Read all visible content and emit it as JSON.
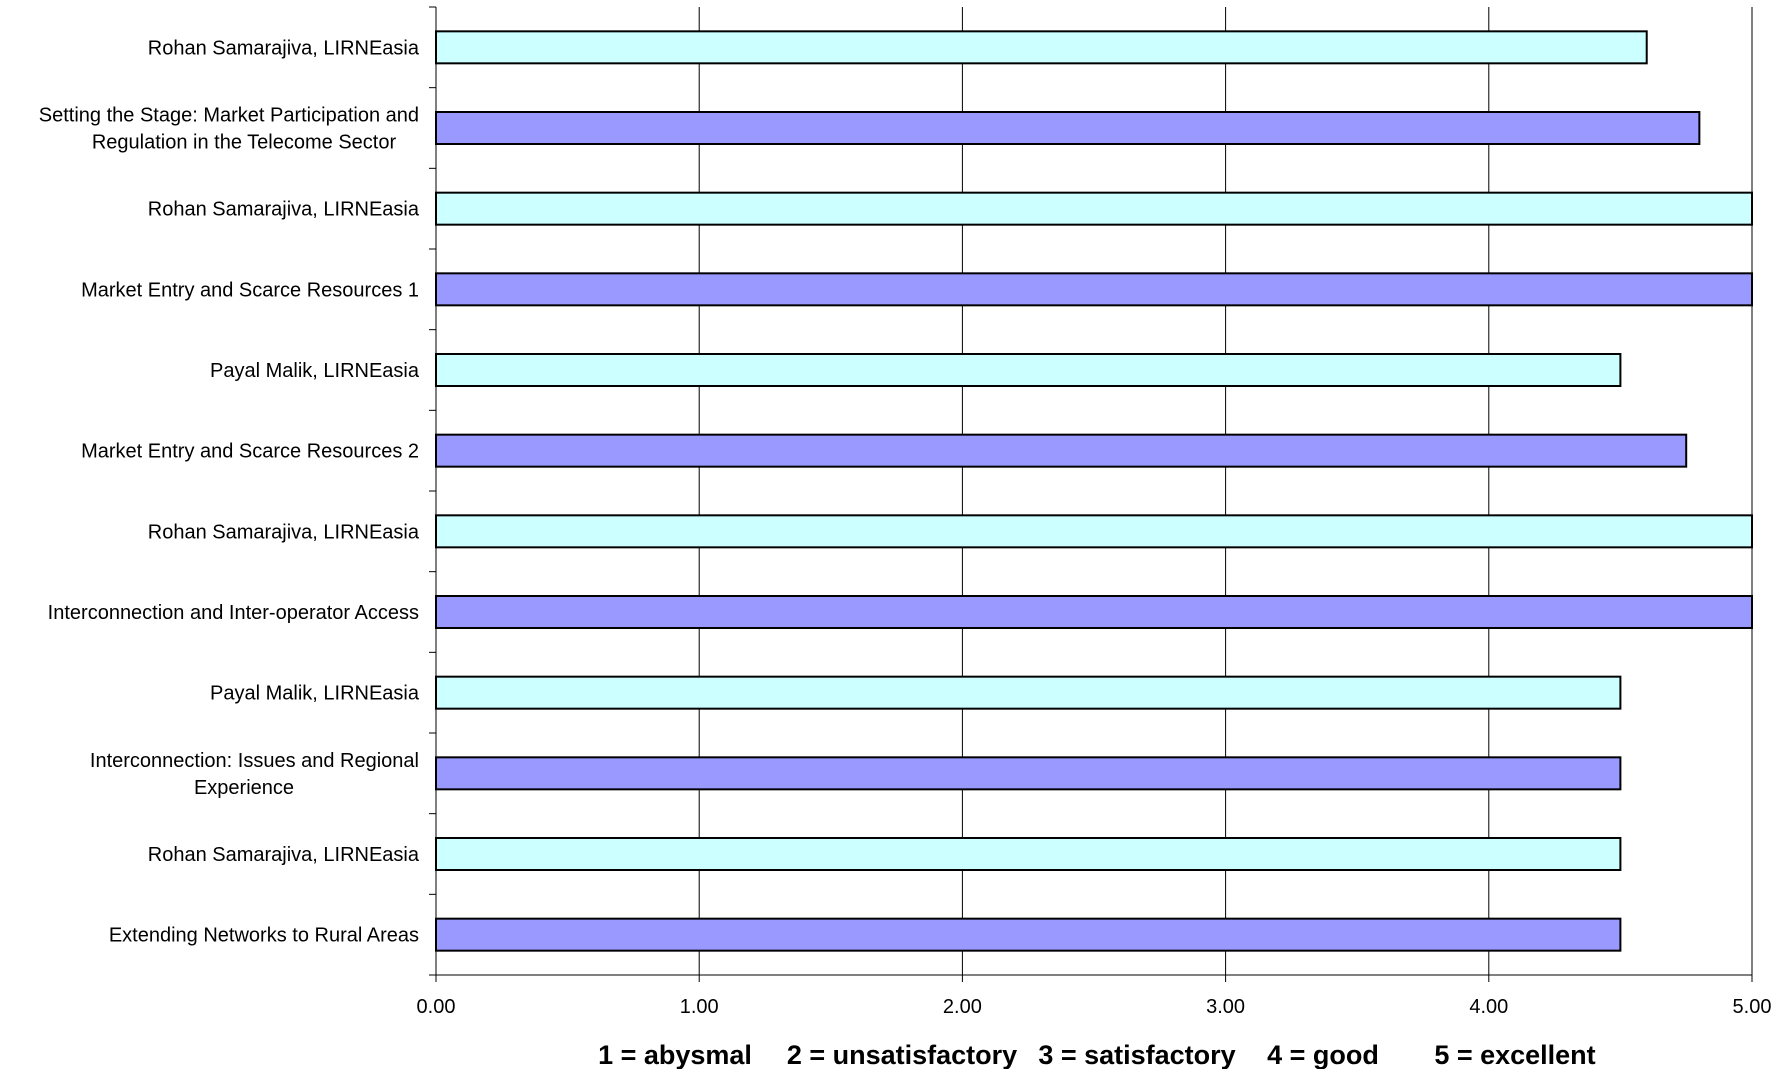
{
  "chart_data": {
    "type": "bar",
    "orientation": "horizontal",
    "categories": [
      "Rohan Samarajiva, LIRNEasia",
      "Setting the Stage: Market Participation and Regulation in the Telecome Sector",
      "Rohan Samarajiva, LIRNEasia",
      "Market Entry and Scarce Resources 1",
      "Payal Malik, LIRNEasia",
      "Market Entry and Scarce Resources 2",
      "Rohan Samarajiva, LIRNEasia",
      "Interconnection and Inter-operator Access",
      "Payal Malik, LIRNEasia",
      "Interconnection: Issues and Regional Experience",
      "Rohan Samarajiva, LIRNEasia",
      "Extending Networks to Rural Areas"
    ],
    "category_lines": [
      [
        "Rohan Samarajiva, LIRNEasia"
      ],
      [
        "Setting the Stage: Market Participation and",
        "Regulation in the Telecome Sector"
      ],
      [
        "Rohan Samarajiva, LIRNEasia"
      ],
      [
        "Market Entry and Scarce Resources 1"
      ],
      [
        "Payal Malik, LIRNEasia"
      ],
      [
        "Market Entry and Scarce Resources 2"
      ],
      [
        "Rohan Samarajiva, LIRNEasia"
      ],
      [
        "Interconnection and Inter-operator Access"
      ],
      [
        "Payal Malik, LIRNEasia"
      ],
      [
        "Interconnection: Issues and Regional",
        "Experience"
      ],
      [
        "Rohan Samarajiva, LIRNEasia"
      ],
      [
        "Extending Networks to Rural Areas"
      ]
    ],
    "values": [
      4.6,
      4.8,
      5.0,
      5.0,
      4.5,
      4.75,
      5.0,
      5.0,
      4.5,
      4.5,
      4.5,
      4.5
    ],
    "bar_kinds": [
      "speaker",
      "session",
      "speaker",
      "session",
      "speaker",
      "session",
      "speaker",
      "session",
      "speaker",
      "session",
      "speaker",
      "session"
    ],
    "colors": {
      "speaker": "#ccffff",
      "session": "#9999ff",
      "outline": "#000000",
      "grid": "#000000"
    },
    "xlim": [
      0,
      5
    ],
    "xticks": [
      "0.00",
      "1.00",
      "2.00",
      "3.00",
      "4.00",
      "5.00"
    ],
    "grid": true,
    "xlabel": "",
    "ylabel": "",
    "title": "",
    "scale_note": [
      "1 = abysmal",
      "2 = unsatisfactory",
      "3 = satisfactory",
      "4 = good",
      "5 = excellent"
    ]
  }
}
